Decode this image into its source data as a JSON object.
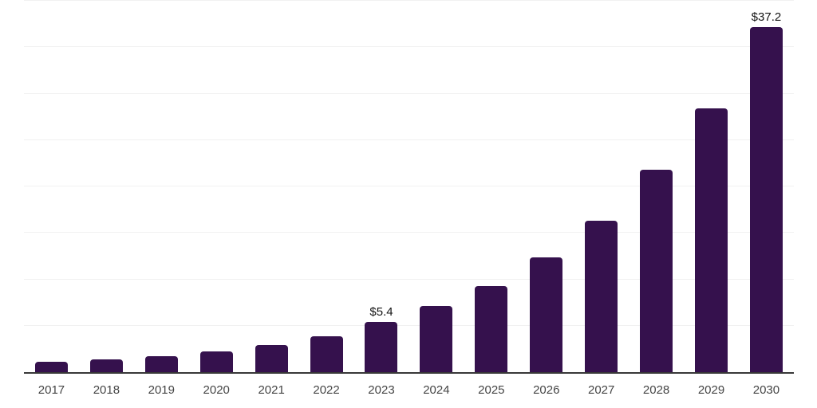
{
  "chart_data": {
    "type": "bar",
    "title": "",
    "xlabel": "",
    "ylabel": "",
    "categories": [
      "2017",
      "2018",
      "2019",
      "2020",
      "2021",
      "2022",
      "2023",
      "2024",
      "2025",
      "2026",
      "2027",
      "2028",
      "2029",
      "2030"
    ],
    "values": [
      1.1,
      1.4,
      1.7,
      2.2,
      2.9,
      3.9,
      5.4,
      7.1,
      9.3,
      12.4,
      16.3,
      21.8,
      28.4,
      37.2
    ],
    "data_labels": {
      "2023": "$5.4",
      "2030": "$37.2"
    },
    "ylim": [
      0,
      40
    ],
    "gridline_step": 5,
    "grid": "horizontal",
    "legend": "none",
    "y_tick_labels_visible": false
  },
  "colors": {
    "bar": "#35114D",
    "gridline": "#F1F1F1",
    "axis_line": "#383838",
    "year_label": "#454545",
    "value_label": "#141414",
    "background": "#FFFFFF"
  }
}
